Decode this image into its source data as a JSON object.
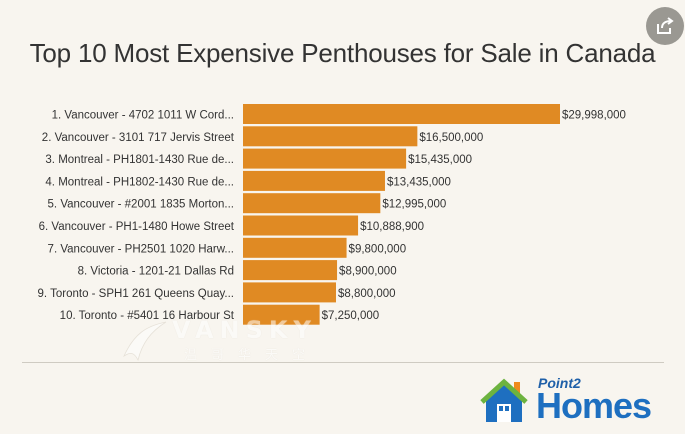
{
  "chart_data": {
    "type": "bar",
    "orientation": "horizontal",
    "title": "Top 10 Most Expensive Penthouses for Sale in Canada",
    "categories": [
      "1. Vancouver - 4702 1011 W Cord...",
      "2. Vancouver - 3101 717 Jervis Street",
      "3. Montreal - PH1801-1430 Rue de...",
      "4. Montreal - PH1802-1430 Rue de...",
      "5. Vancouver - #2001 1835 Morton...",
      "6. Vancouver - PH1-1480 Howe Street",
      "7. Vancouver - PH2501 1020 Harw...",
      "8. Victoria - 1201-21 Dallas Rd",
      "9. Toronto - SPH1 261 Queens Quay...",
      "10. Toronto - #5401 16 Harbour St"
    ],
    "values": [
      29998000,
      16500000,
      15435000,
      13435000,
      12995000,
      10888900,
      9800000,
      8900000,
      8800000,
      7250000
    ],
    "value_labels": [
      "$29,998,000",
      "$16,500,000",
      "$15,435,000",
      "$13,435,000",
      "$12,995,000",
      "$10,888,900",
      "$9,800,000",
      "$8,900,000",
      "$8,800,000",
      "$7,250,000"
    ],
    "bar_color": "#e08a23",
    "xlim": [
      0,
      29998000
    ],
    "grid": false,
    "legend": "none"
  },
  "share_button": {
    "icon": "share-icon"
  },
  "watermark": {
    "text": "VANSKY",
    "subtext": "温哥华天空"
  },
  "logo": {
    "brand": "Point2",
    "name": "Homes"
  },
  "colors": {
    "background": "#f8f5ef",
    "bar": "#e08a23",
    "logo_blue": "#1e6fc0",
    "logo_green": "#6db33f",
    "logo_orange": "#f08a1c"
  }
}
